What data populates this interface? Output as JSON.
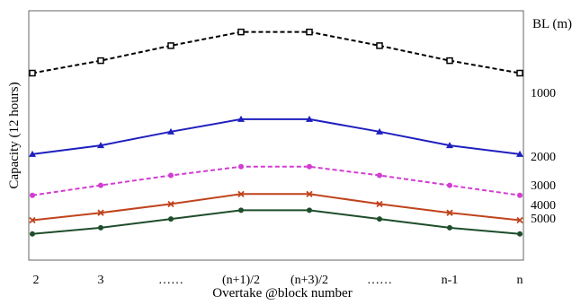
{
  "chart_data": {
    "type": "line",
    "xlabel": "Overtake @block number",
    "ylabel": "Capacity (12 hours)",
    "right_axis_title": "BL (m)",
    "right_axis_ticks": [
      "1000",
      "2000",
      "3000",
      "4000",
      "5000"
    ],
    "categories": [
      "2",
      "3",
      "……",
      "(n+1)/2",
      "(n+3)/2",
      "……",
      "n-1",
      "n"
    ],
    "ylim": [
      0,
      100
    ],
    "grid": false,
    "series": [
      {
        "right_label": "1000",
        "color": "#000000",
        "dash": true,
        "marker": "square",
        "values": [
          75,
          80,
          86,
          91.5,
          91.5,
          86,
          80,
          75
        ]
      },
      {
        "right_label": "2000",
        "color": "#1f1fbf",
        "dash": false,
        "marker": "triangle",
        "values": [
          42.5,
          46,
          51.5,
          56.5,
          56.5,
          51.5,
          46,
          42.5
        ]
      },
      {
        "right_label": "3000",
        "color": "#d23cd2",
        "dash": true,
        "marker": "circle",
        "values": [
          26,
          30,
          34,
          37.5,
          37.5,
          34,
          30,
          26
        ]
      },
      {
        "right_label": "4000",
        "color": "#c0431c",
        "dash": false,
        "marker": "x",
        "values": [
          16,
          19,
          22.5,
          26.5,
          26.5,
          22.5,
          19,
          16
        ]
      },
      {
        "right_label": "5000",
        "color": "#1e4d2b",
        "dash": false,
        "marker": "circle",
        "values": [
          10.5,
          13,
          16.5,
          20,
          20,
          16.5,
          13,
          10.5
        ]
      }
    ]
  }
}
